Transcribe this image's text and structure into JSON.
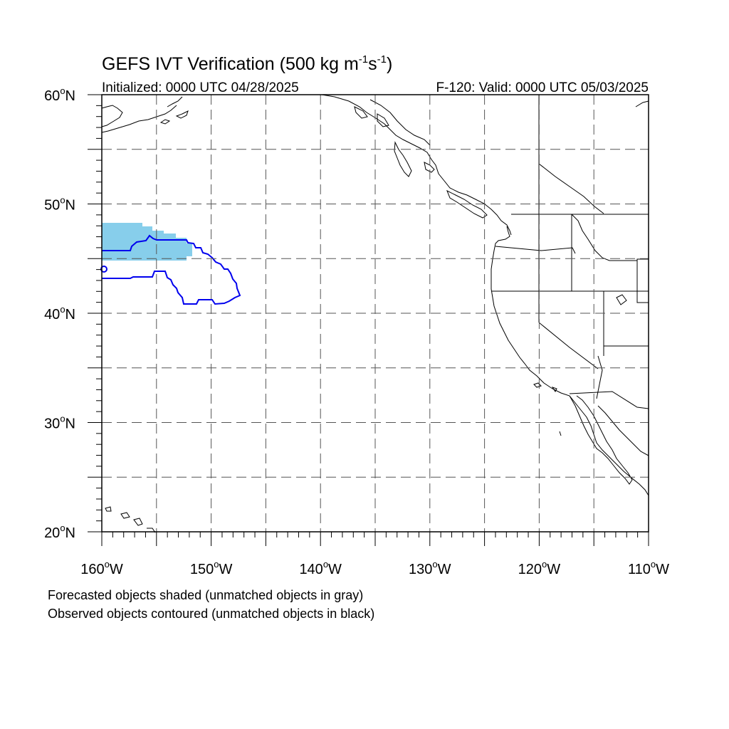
{
  "title": {
    "main": "GEFS IVT Verification (500 kg m",
    "exp1": "-1",
    "mid": "s",
    "exp2": "-1",
    "close": ")"
  },
  "subtitle_left": "Initialized: 0000 UTC 04/28/2025",
  "subtitle_right": "F-120: Valid: 0000 UTC 05/03/2025",
  "lat_labels": [
    "60",
    "50",
    "40",
    "30",
    "20"
  ],
  "lat_suffix": "N",
  "lon_labels": [
    "160",
    "150",
    "140",
    "130",
    "120",
    "110"
  ],
  "lon_suffix": "W",
  "degree_symbol": "o",
  "footer": {
    "line1": "Forecasted objects shaded (unmatched objects in gray)",
    "line2": "Observed objects contoured (unmatched objects in black)"
  },
  "colors": {
    "forecast_fill": "#87ceeb",
    "observed_contour": "#0000ee",
    "coastline": "#000000",
    "grid": "#555555"
  }
}
